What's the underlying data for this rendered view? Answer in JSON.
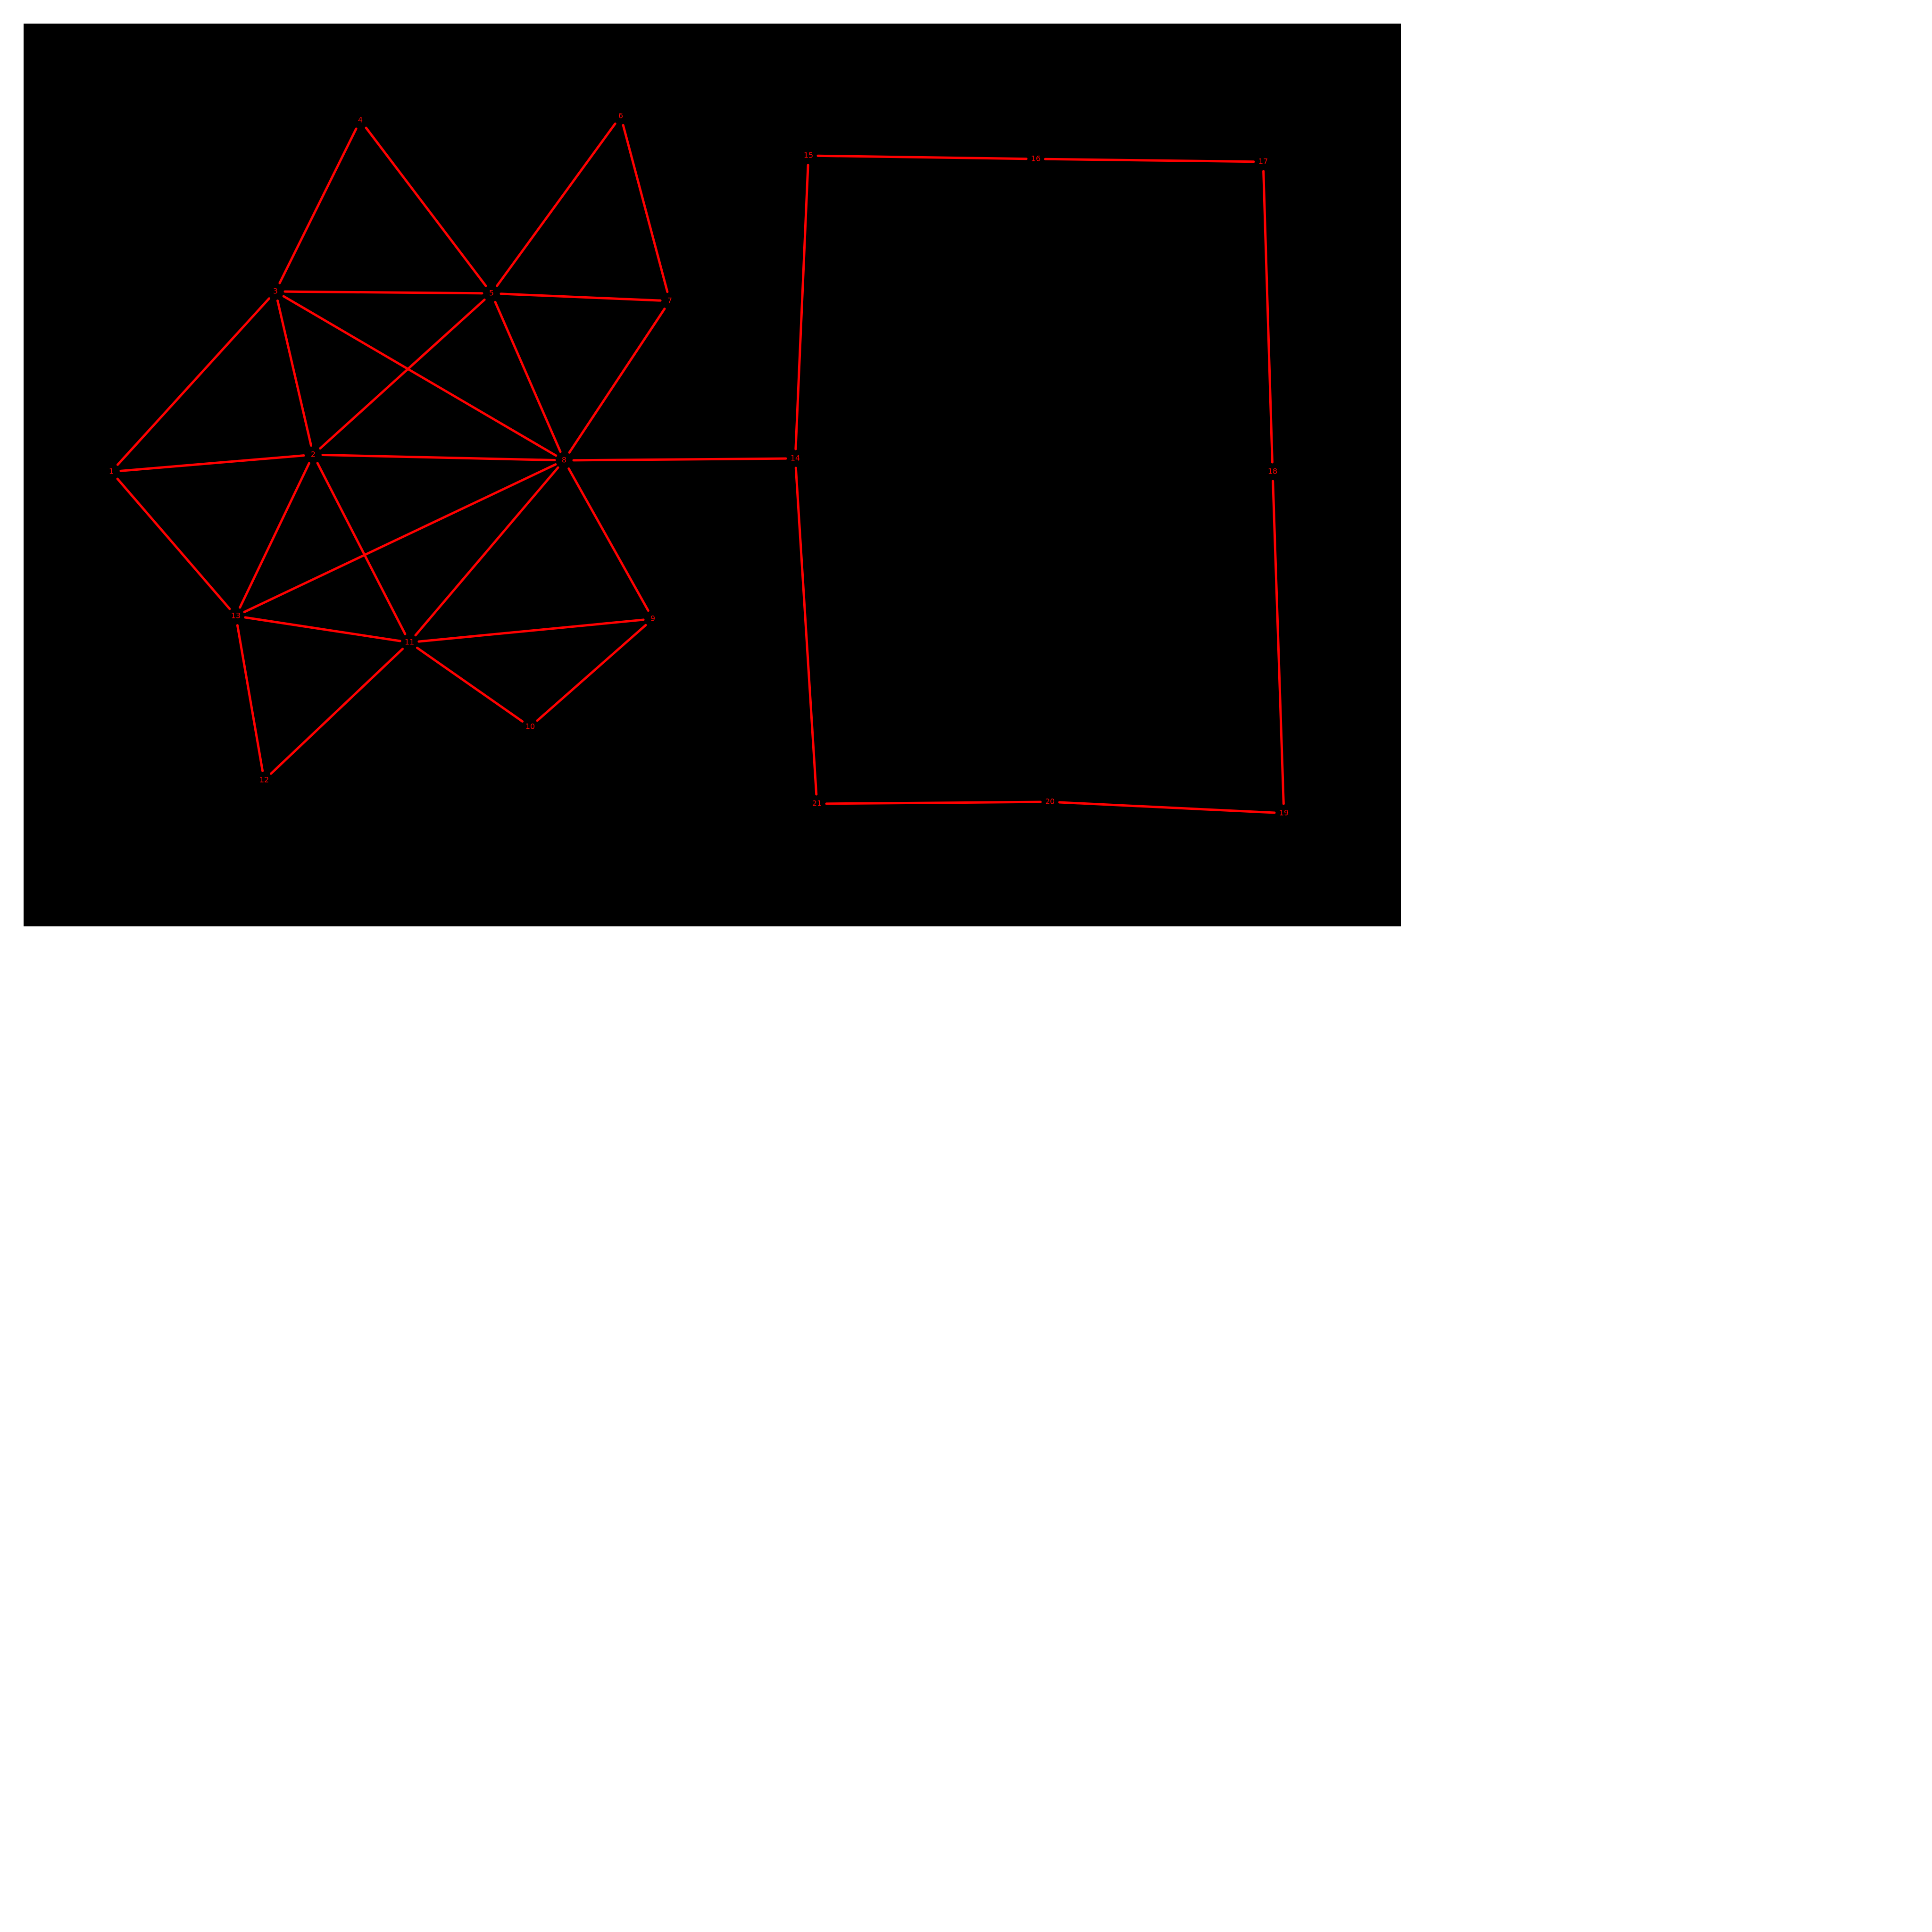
{
  "canvas": {
    "background_color": "#000000",
    "edge_color": "#ff0000",
    "label_color": "#ff0000"
  },
  "nodes": [
    {
      "id": "1",
      "label": "1"
    },
    {
      "id": "2",
      "label": "2"
    },
    {
      "id": "3",
      "label": "3"
    },
    {
      "id": "4",
      "label": "4"
    },
    {
      "id": "5",
      "label": "5"
    },
    {
      "id": "6",
      "label": "6"
    },
    {
      "id": "7",
      "label": "7"
    },
    {
      "id": "8",
      "label": "8"
    },
    {
      "id": "9",
      "label": "9"
    },
    {
      "id": "10",
      "label": "10"
    },
    {
      "id": "11",
      "label": "11"
    },
    {
      "id": "12",
      "label": "12"
    },
    {
      "id": "13",
      "label": "13"
    },
    {
      "id": "14",
      "label": "14"
    },
    {
      "id": "15",
      "label": "15"
    },
    {
      "id": "16",
      "label": "16"
    },
    {
      "id": "17",
      "label": "17"
    },
    {
      "id": "18",
      "label": "18"
    },
    {
      "id": "19",
      "label": "19"
    },
    {
      "id": "20",
      "label": "20"
    },
    {
      "id": "21",
      "label": "21"
    }
  ],
  "edges": [
    [
      "1",
      "3"
    ],
    [
      "1",
      "2"
    ],
    [
      "1",
      "13"
    ],
    [
      "3",
      "4"
    ],
    [
      "4",
      "5"
    ],
    [
      "3",
      "5"
    ],
    [
      "3",
      "2"
    ],
    [
      "3",
      "8"
    ],
    [
      "5",
      "6"
    ],
    [
      "6",
      "7"
    ],
    [
      "5",
      "7"
    ],
    [
      "5",
      "2"
    ],
    [
      "5",
      "8"
    ],
    [
      "7",
      "8"
    ],
    [
      "2",
      "8"
    ],
    [
      "2",
      "13"
    ],
    [
      "2",
      "11"
    ],
    [
      "8",
      "13"
    ],
    [
      "8",
      "11"
    ],
    [
      "8",
      "9"
    ],
    [
      "8",
      "14"
    ],
    [
      "13",
      "11"
    ],
    [
      "13",
      "12"
    ],
    [
      "12",
      "11"
    ],
    [
      "11",
      "9"
    ],
    [
      "11",
      "10"
    ],
    [
      "10",
      "9"
    ],
    [
      "14",
      "15"
    ],
    [
      "15",
      "16"
    ],
    [
      "16",
      "17"
    ],
    [
      "17",
      "18"
    ],
    [
      "18",
      "19"
    ],
    [
      "19",
      "20"
    ],
    [
      "20",
      "21"
    ],
    [
      "21",
      "14"
    ]
  ]
}
